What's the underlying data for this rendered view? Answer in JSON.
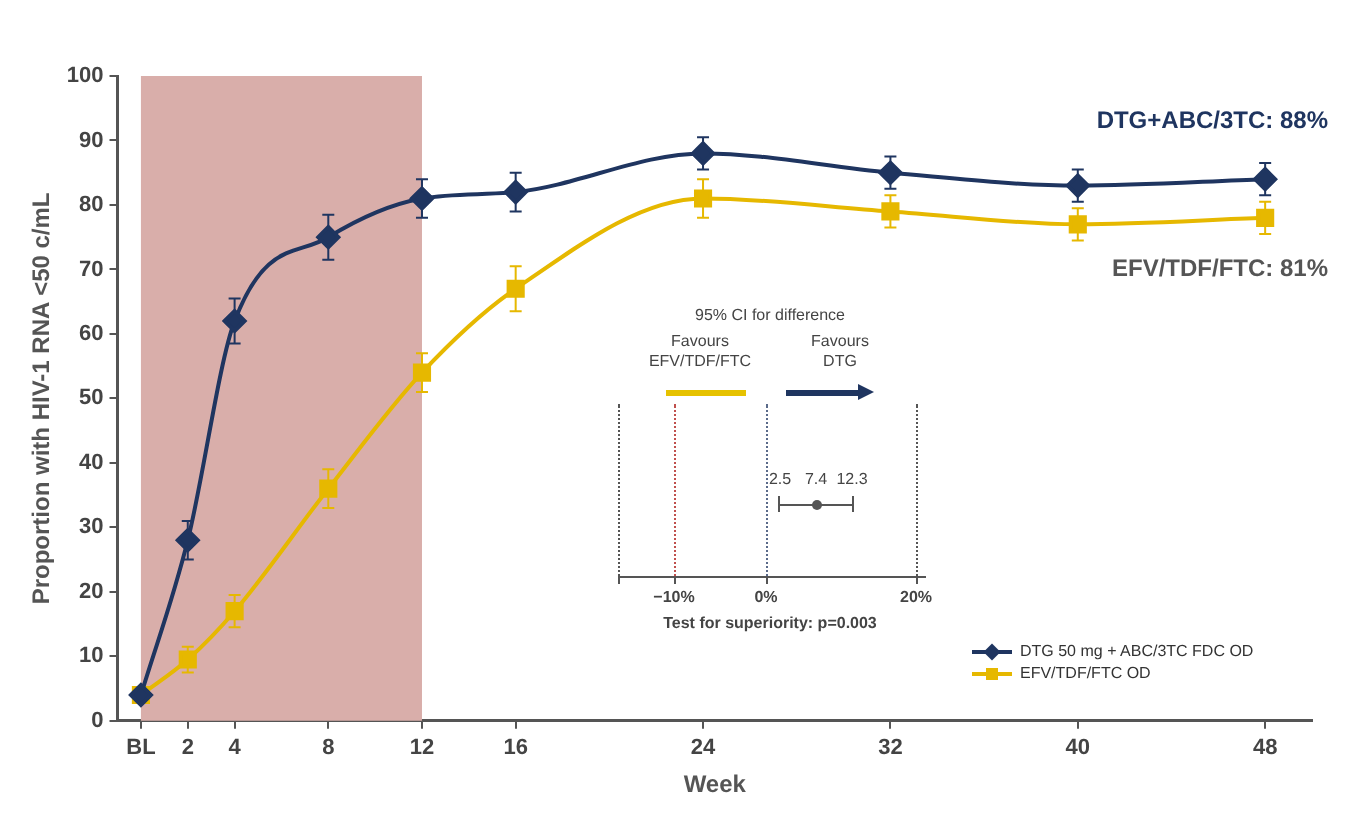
{
  "chart_data": [
    {
      "type": "line",
      "xlabel": "Week",
      "ylabel": "Proportion with HIV-1 RNA <50 c/mL",
      "x": [
        0,
        2,
        4,
        8,
        12,
        16,
        24,
        32,
        40,
        48
      ],
      "xlim": [
        -1,
        50
      ],
      "xticks": [
        {
          "value": 0,
          "label": "BL"
        },
        2,
        4,
        8,
        12,
        16,
        24,
        32,
        40,
        48
      ],
      "ylim": [
        0,
        100
      ],
      "yticks": [
        0,
        10,
        20,
        30,
        40,
        50,
        60,
        70,
        80,
        90,
        100
      ],
      "series": [
        {
          "name": "DTG 50 mg + ABC/3TC FDC OD",
          "color": "#1f3560",
          "marker": "diamond",
          "values": [
            4,
            28,
            62,
            75,
            81,
            82,
            88,
            85,
            83,
            84
          ],
          "errors": [
            null,
            3,
            3.5,
            3.5,
            3,
            3,
            2.5,
            2.5,
            2.5,
            2.5
          ]
        },
        {
          "name": "EFV/TDF/FTC OD",
          "color": "#e6b800",
          "marker": "square",
          "values": [
            4,
            9.5,
            17,
            36,
            54,
            67,
            81,
            79,
            77,
            78
          ],
          "errors": [
            null,
            2,
            2.5,
            3,
            3,
            3.5,
            3,
            2.5,
            2.5,
            2.5
          ]
        }
      ],
      "bands": [
        {
          "axis": "x",
          "from": 0,
          "to": 12,
          "color": "#d9aeaa"
        }
      ],
      "annotations": [
        "DTG+ABC/3TC: 88%",
        "EFV/TDF/FTC: 81%"
      ],
      "legend": "bottom right",
      "grid": false,
      "line_style": "solid"
    },
    {
      "type": "other",
      "title": "95% CI for difference",
      "xlabel": "Test for superiority: p=0.003",
      "annotations": [
        "Favours EFV/TDF/FTC",
        "Favours DTG",
        "2.5",
        "7.4",
        "12.3",
        "−10%",
        "0%",
        "20%"
      ]
    }
  ]
}
